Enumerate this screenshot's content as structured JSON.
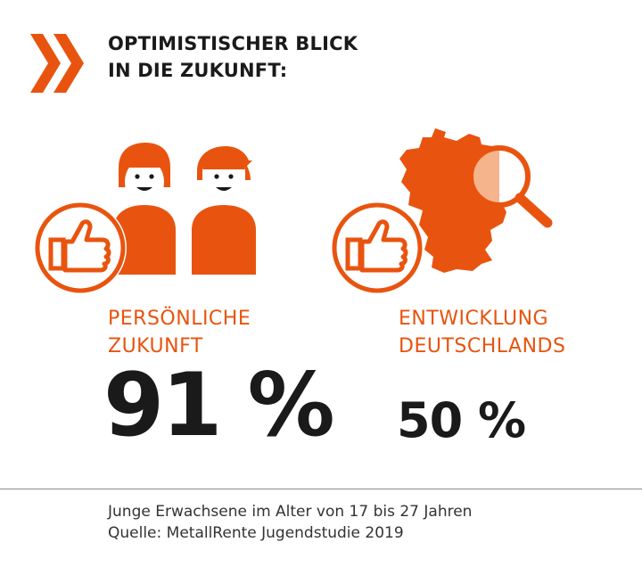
{
  "colors": {
    "accent": "#e8540f",
    "accent_light": "#f6b48c",
    "text_dark": "#1a1a1a",
    "divider": "#8a8a8a"
  },
  "header": {
    "icon": "double-chevron-right-icon",
    "title_line1": "OPTIMISTISCHER BLICK",
    "title_line2": "IN DIE ZUKUNFT:"
  },
  "left_panel": {
    "icons": [
      "two-people-icon",
      "thumbs-up-icon"
    ],
    "label_line1": "PERSÖNLICHE",
    "label_line2": "ZUKUNFT",
    "value": "91 %"
  },
  "right_panel": {
    "icons": [
      "germany-map-icon",
      "magnifier-icon",
      "thumbs-up-icon"
    ],
    "label_line1": "ENTWICKLUNG",
    "label_line2": "DEUTSCHLANDS",
    "value": "50 %"
  },
  "footer": {
    "line1": "Junge Erwachsene im Alter von 17 bis 27 Jahren",
    "line2": "Quelle: MetallRente Jugendstudie 2019"
  }
}
